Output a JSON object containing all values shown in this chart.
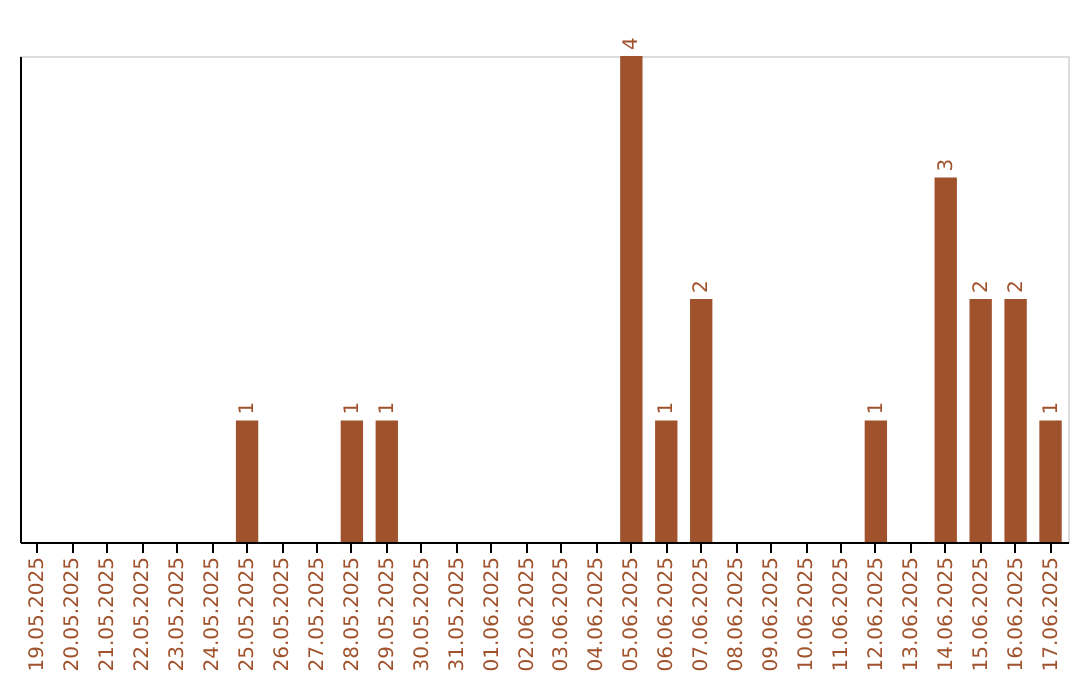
{
  "chart_data": {
    "type": "bar",
    "categories": [
      "19.05.2025",
      "20.05.2025",
      "21.05.2025",
      "22.05.2025",
      "23.05.2025",
      "24.05.2025",
      "25.05.2025",
      "26.05.2025",
      "27.05.2025",
      "28.05.2025",
      "29.05.2025",
      "30.05.2025",
      "31.05.2025",
      "01.06.2025",
      "02.06.2025",
      "03.06.2025",
      "04.06.2025",
      "05.06.2025",
      "06.06.2025",
      "07.06.2025",
      "08.06.2025",
      "09.06.2025",
      "10.06.2025",
      "11.06.2025",
      "12.06.2025",
      "13.06.2025",
      "14.06.2025",
      "15.06.2025",
      "16.06.2025",
      "17.06.2025"
    ],
    "values": [
      0,
      0,
      0,
      0,
      0,
      0,
      1,
      0,
      0,
      1,
      1,
      0,
      0,
      0,
      0,
      0,
      0,
      4,
      1,
      2,
      0,
      0,
      0,
      0,
      1,
      0,
      3,
      2,
      2,
      1
    ],
    "value_labels": [
      null,
      null,
      null,
      null,
      null,
      null,
      "1",
      null,
      null,
      "1",
      "1",
      null,
      null,
      null,
      null,
      null,
      null,
      "4",
      "1",
      "2",
      null,
      null,
      null,
      null,
      "1",
      null,
      "3",
      "2",
      "2",
      "1"
    ],
    "color": "#a0522d",
    "tick_labels": "x"
  }
}
